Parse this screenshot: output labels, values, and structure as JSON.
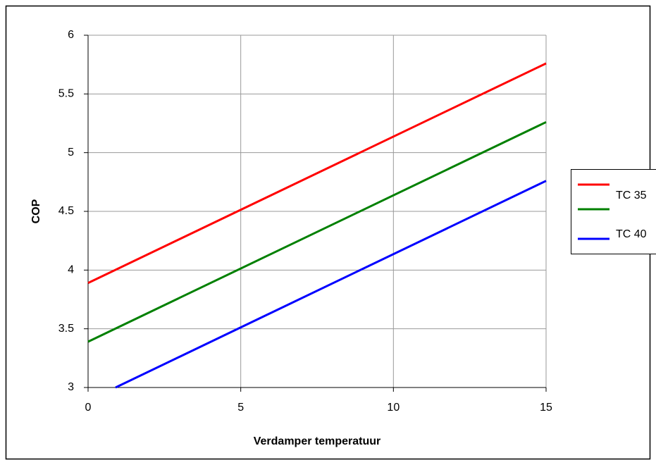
{
  "chart_data": {
    "type": "line",
    "xlabel": "Verdamper  temperatuur",
    "ylabel": "COP",
    "series": [
      {
        "name": "TC 35",
        "color": "#ff0000",
        "x": [
          0,
          15
        ],
        "values": [
          3.89,
          5.76
        ]
      },
      {
        "name": null,
        "color": "#008000",
        "x": [
          0,
          15
        ],
        "values": [
          3.39,
          5.26
        ]
      },
      {
        "name": "TC 40",
        "color": "#0000ff",
        "x": [
          0.9,
          15
        ],
        "values": [
          3.0,
          4.76
        ]
      }
    ],
    "xlim": [
      0,
      15
    ],
    "xticks": [
      0,
      5,
      10,
      15
    ],
    "ylim": [
      3,
      6
    ],
    "yticks": [
      3,
      3.5,
      4,
      4.5,
      5,
      5.5,
      6
    ],
    "grid": true,
    "legend": "right"
  }
}
